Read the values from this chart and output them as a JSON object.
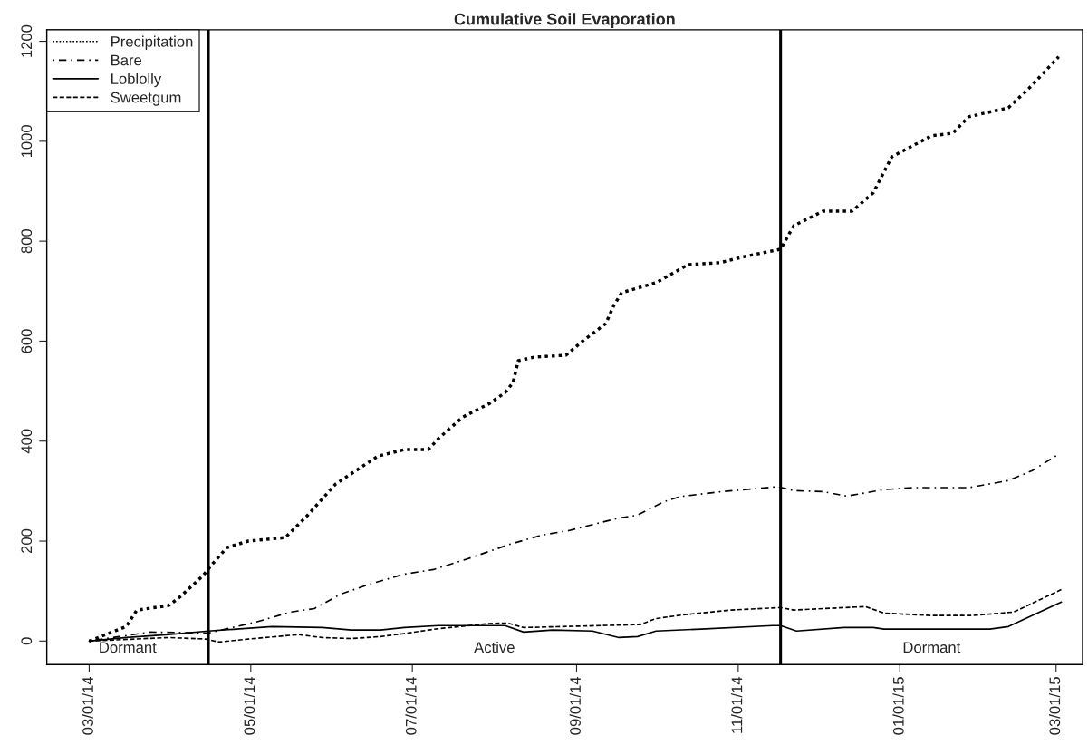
{
  "chart_data": {
    "type": "line",
    "title": "Cumulative Soil Evaporation",
    "xlim": [
      "2014-02-13",
      "2015-03-11"
    ],
    "ylim": [
      -47,
      1223
    ],
    "yticks": [
      0,
      200,
      400,
      600,
      800,
      1000,
      1200
    ],
    "xticks": [
      {
        "value": "2014-03-01",
        "label": "03/01/14"
      },
      {
        "value": "2014-05-01",
        "label": "05/01/14"
      },
      {
        "value": "2014-07-01",
        "label": "07/01/14"
      },
      {
        "value": "2014-09-01",
        "label": "09/01/14"
      },
      {
        "value": "2014-11-01",
        "label": "11/01/14"
      },
      {
        "value": "2015-01-01",
        "label": "01/01/15"
      },
      {
        "value": "2015-03-01",
        "label": "03/01/15"
      }
    ],
    "grid": false,
    "legend": "top left",
    "marker": "none",
    "series": [
      {
        "name": "Precipitation",
        "color": "#000000",
        "line_style": "dotted",
        "x": [
          "2014-03-01",
          "2014-03-15",
          "2014-03-19",
          "2014-03-31",
          "2014-04-04",
          "2014-04-13",
          "2014-04-16",
          "2014-04-22",
          "2014-04-30",
          "2014-05-14",
          "2014-05-22",
          "2014-06-02",
          "2014-06-18",
          "2014-06-28",
          "2014-07-07",
          "2014-07-11",
          "2014-07-20",
          "2014-07-30",
          "2014-08-05",
          "2014-08-08",
          "2014-08-10",
          "2014-08-16",
          "2014-08-28",
          "2014-09-03",
          "2014-09-12",
          "2014-09-15",
          "2014-09-18",
          "2014-10-01",
          "2014-10-13",
          "2014-10-25",
          "2014-11-04",
          "2014-11-17",
          "2014-11-22",
          "2014-12-03",
          "2014-12-14",
          "2014-12-22",
          "2014-12-29",
          "2015-01-13",
          "2015-01-21",
          "2015-01-27",
          "2015-02-11",
          "2015-02-19",
          "2015-03-02"
        ],
        "values": [
          0,
          29,
          62,
          71,
          87,
          131,
          151,
          187,
          200,
          207,
          249,
          314,
          370,
          383,
          383,
          406,
          448,
          475,
          497,
          517,
          561,
          568,
          572,
          599,
          635,
          671,
          697,
          717,
          753,
          757,
          770,
          784,
          831,
          860,
          860,
          897,
          969,
          1011,
          1016,
          1049,
          1067,
          1107,
          1169
        ]
      },
      {
        "name": "Bare",
        "color": "#000000",
        "line_style": "dashdot",
        "x": [
          "2014-03-01",
          "2014-03-24",
          "2014-04-15",
          "2014-05-03",
          "2014-05-16",
          "2014-05-25",
          "2014-06-04",
          "2014-06-15",
          "2014-06-28",
          "2014-07-09",
          "2014-07-21",
          "2014-08-07",
          "2014-08-19",
          "2014-08-29",
          "2014-09-16",
          "2014-09-24",
          "2014-10-04",
          "2014-10-10",
          "2014-10-24",
          "2014-11-16",
          "2014-11-22",
          "2014-12-03",
          "2014-12-12",
          "2014-12-26",
          "2015-01-06",
          "2015-01-27",
          "2015-02-11",
          "2015-02-20",
          "2015-03-02"
        ],
        "values": [
          0,
          18,
          16,
          38,
          58,
          65,
          94,
          114,
          134,
          143,
          163,
          194,
          212,
          221,
          245,
          252,
          279,
          289,
          298,
          309,
          301,
          299,
          290,
          303,
          307,
          307,
          321,
          341,
          374
        ]
      },
      {
        "name": "Loblolly",
        "color": "#000000",
        "line_style": "solid",
        "x": [
          "2014-03-01",
          "2014-03-15",
          "2014-03-31",
          "2014-04-15",
          "2014-05-09",
          "2014-05-28",
          "2014-06-08",
          "2014-06-19",
          "2014-06-28",
          "2014-07-11",
          "2014-08-05",
          "2014-08-12",
          "2014-08-23",
          "2014-09-07",
          "2014-09-17",
          "2014-09-24",
          "2014-10-01",
          "2014-10-18",
          "2014-11-14",
          "2014-11-17",
          "2014-11-23",
          "2014-12-11",
          "2014-12-22",
          "2014-12-26",
          "2015-02-04",
          "2015-02-11",
          "2015-03-03"
        ],
        "values": [
          0,
          7,
          13,
          20,
          29,
          27,
          22,
          22,
          27,
          31,
          31,
          18,
          22,
          20,
          7,
          9,
          20,
          24,
          31,
          31,
          20,
          27,
          27,
          24,
          24,
          29,
          78
        ]
      },
      {
        "name": "Sweetgum",
        "color": "#000000",
        "line_style": "dashed",
        "x": [
          "2014-03-01",
          "2014-03-31",
          "2014-04-14",
          "2014-04-19",
          "2014-04-30",
          "2014-05-19",
          "2014-05-28",
          "2014-06-08",
          "2014-06-19",
          "2014-06-28",
          "2014-07-11",
          "2014-07-30",
          "2014-08-06",
          "2014-08-12",
          "2014-09-25",
          "2014-10-01",
          "2014-10-12",
          "2014-10-29",
          "2014-11-17",
          "2014-11-22",
          "2014-12-19",
          "2014-12-26",
          "2015-01-13",
          "2015-01-28",
          "2015-02-13",
          "2015-03-03"
        ],
        "values": [
          0,
          7,
          4,
          -2,
          4,
          13,
          7,
          5,
          9,
          15,
          25,
          35,
          36,
          27,
          33,
          45,
          53,
          62,
          67,
          62,
          69,
          56,
          51,
          51,
          58,
          103
        ]
      }
    ],
    "ref_lines": [
      {
        "axis": "x",
        "value": "2014-04-15",
        "color": "#000000",
        "line_style": "solid"
      },
      {
        "axis": "x",
        "value": "2014-11-17",
        "color": "#000000",
        "line_style": "solid"
      }
    ],
    "annotations": [
      "Dormant",
      "Active",
      "Dormant"
    ]
  }
}
